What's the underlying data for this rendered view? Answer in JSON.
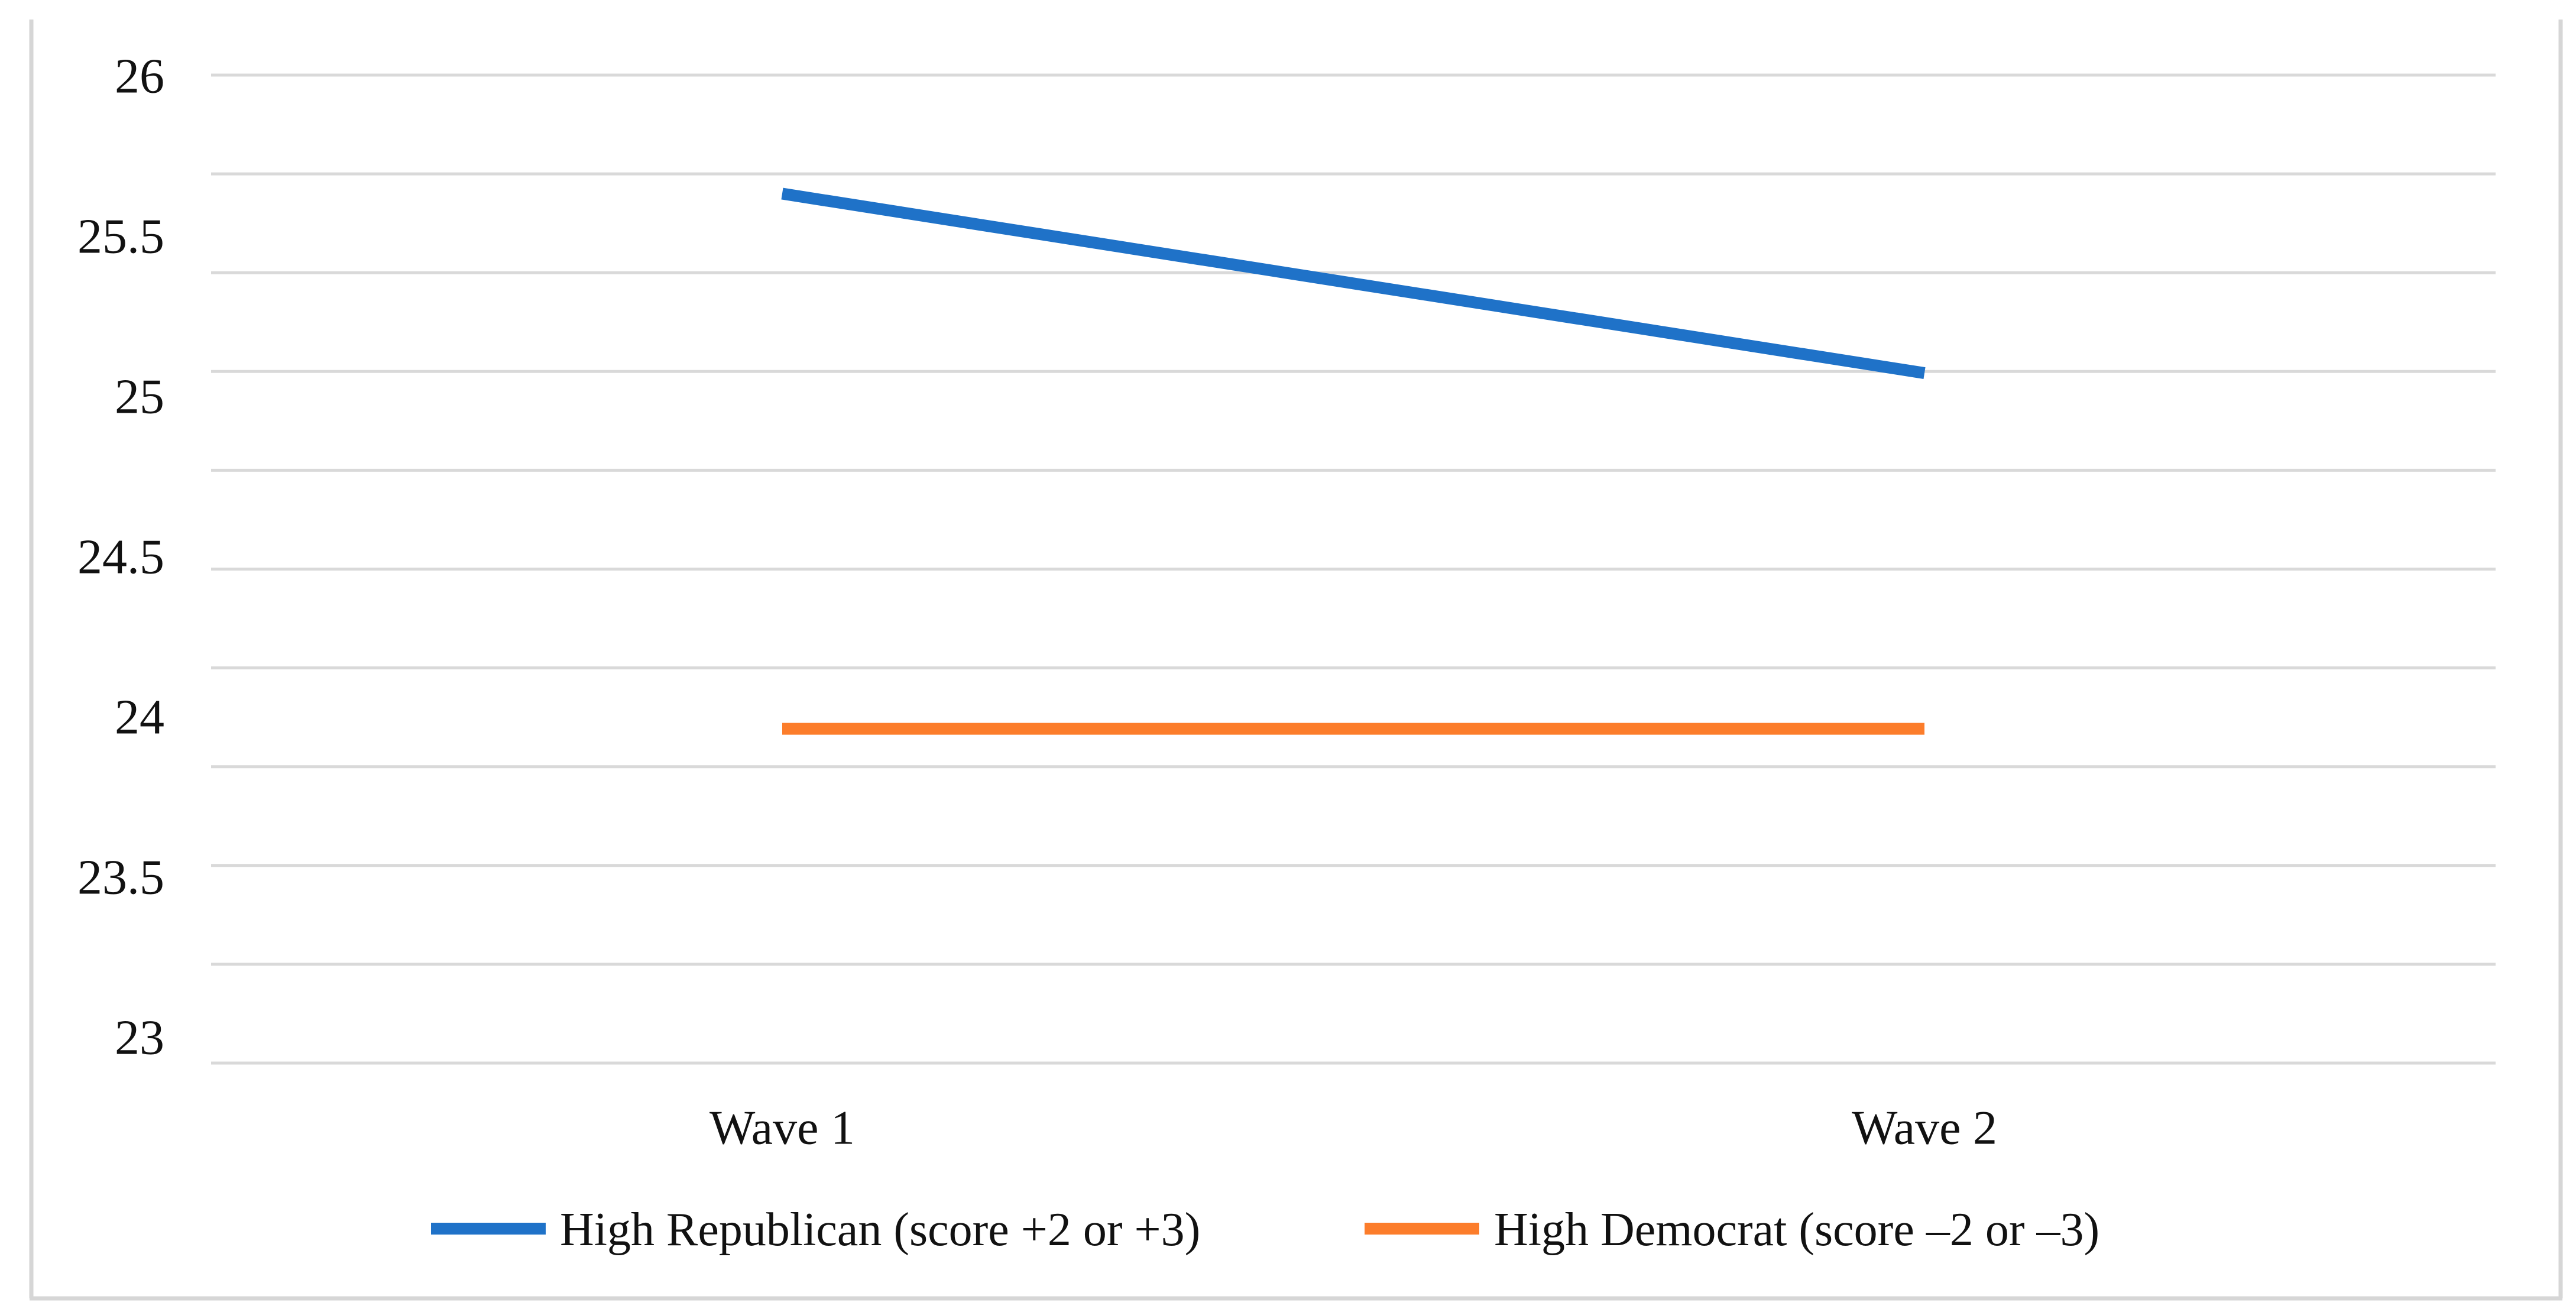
{
  "figure": {
    "description": "Line chart comparing mean scores across two survey waves by partisan group",
    "background_color": "#FFFFFF",
    "border_color": "#D6D6D6",
    "grid_color": "#D9D9D9"
  },
  "chart_data": {
    "type": "line",
    "categories": [
      "Wave 1",
      "Wave 2"
    ],
    "series": [
      {
        "name": "High Republican (score +2 or +3)",
        "values": [
          25.63,
          25.07
        ],
        "color": "#1F72C8"
      },
      {
        "name": "High Democrat (score –2 or –3)",
        "values": [
          23.96,
          23.96
        ],
        "color": "#FC7D2B"
      }
    ],
    "title": "",
    "xlabel": "",
    "ylabel": "",
    "ylim": [
      23,
      26
    ],
    "y_ticks": [
      26,
      25.5,
      25,
      24.5,
      24,
      23.5,
      23
    ],
    "y_tick_step": 0.5,
    "gridline_count": 11,
    "grid": true,
    "legend_position": "bottom"
  }
}
